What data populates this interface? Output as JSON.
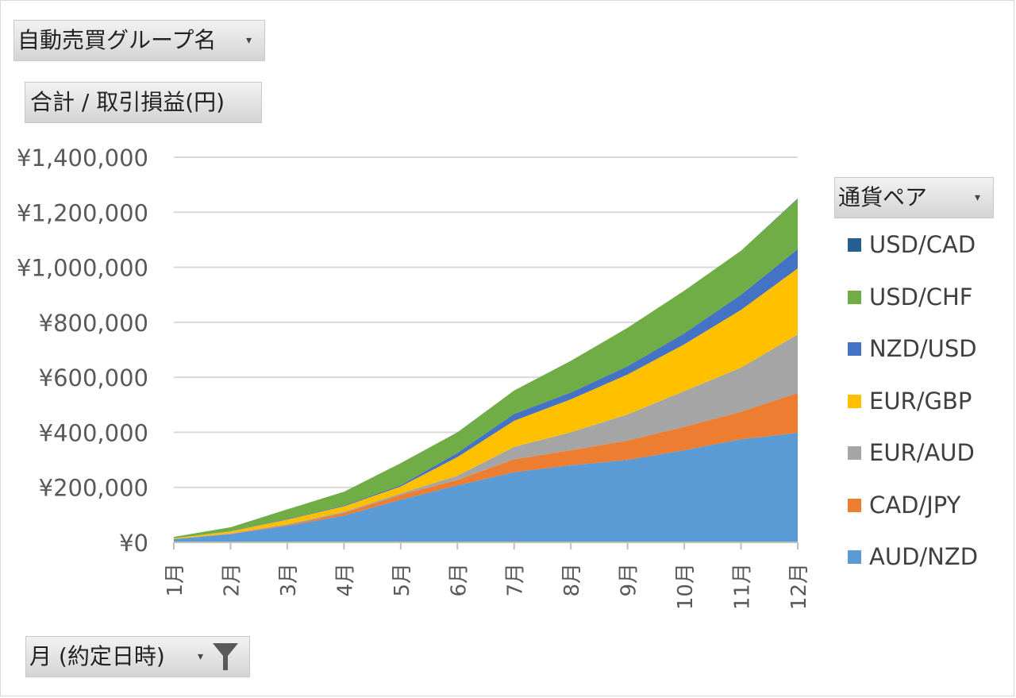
{
  "filter_field": {
    "label": "自動売買グループ名"
  },
  "values_field": {
    "label": "合計 / 取引損益(円)"
  },
  "legend_field": {
    "label": "通貨ペア"
  },
  "axis_field": {
    "label": "月 (約定日時)"
  },
  "icons": {
    "dropdown": "dropdown-arrow-icon",
    "filter": "funnel-filter-icon"
  },
  "chart_data": {
    "type": "area",
    "stacked": true,
    "title": "",
    "xlabel": "",
    "ylabel": "",
    "categories": [
      "1月",
      "2月",
      "3月",
      "4月",
      "5月",
      "6月",
      "7月",
      "8月",
      "9月",
      "10月",
      "11月",
      "12月"
    ],
    "ylim": [
      0,
      1400000
    ],
    "yticks": [
      0,
      200000,
      400000,
      600000,
      800000,
      1000000,
      1200000,
      1400000
    ],
    "ytick_labels": [
      "¥0",
      "¥200,000",
      "¥400,000",
      "¥600,000",
      "¥800,000",
      "¥1,000,000",
      "¥1,200,000",
      "¥1,400,000"
    ],
    "grid": true,
    "legend_position": "right",
    "series": [
      {
        "name": "AUD/NZD",
        "color": "#5b9bd5",
        "values": [
          12000,
          30000,
          60000,
          97000,
          155000,
          207000,
          255000,
          280000,
          300000,
          335000,
          375000,
          398000
        ]
      },
      {
        "name": "CAD/JPY",
        "color": "#ed7d31",
        "values": [
          0,
          1000,
          3000,
          10000,
          18000,
          20000,
          47000,
          55000,
          70000,
          85000,
          100000,
          145000
        ]
      },
      {
        "name": "EUR/AUD",
        "color": "#a5a5a5",
        "values": [
          0,
          2000,
          3000,
          4000,
          5000,
          15000,
          45000,
          65000,
          95000,
          130000,
          160000,
          213000
        ]
      },
      {
        "name": "EUR/GBP",
        "color": "#ffc000",
        "values": [
          3000,
          7000,
          17000,
          20000,
          25000,
          68000,
          95000,
          120000,
          145000,
          170000,
          210000,
          240000
        ]
      },
      {
        "name": "NZD/USD",
        "color": "#4472c4",
        "values": [
          0,
          1000,
          2000,
          3000,
          5000,
          15000,
          25000,
          25000,
          30000,
          40000,
          55000,
          70000
        ]
      },
      {
        "name": "USD/CHF",
        "color": "#70ad47",
        "values": [
          5000,
          14000,
          35000,
          50000,
          80000,
          75000,
          85000,
          115000,
          140000,
          155000,
          160000,
          182000
        ]
      },
      {
        "name": "USD/CAD",
        "color": "#255e91",
        "values": [
          0,
          0,
          0,
          0,
          0,
          0,
          0,
          0,
          0,
          0,
          0,
          2000
        ]
      }
    ],
    "legend_order": [
      "USD/CAD",
      "USD/CHF",
      "NZD/USD",
      "EUR/GBP",
      "EUR/AUD",
      "CAD/JPY",
      "AUD/NZD"
    ]
  }
}
